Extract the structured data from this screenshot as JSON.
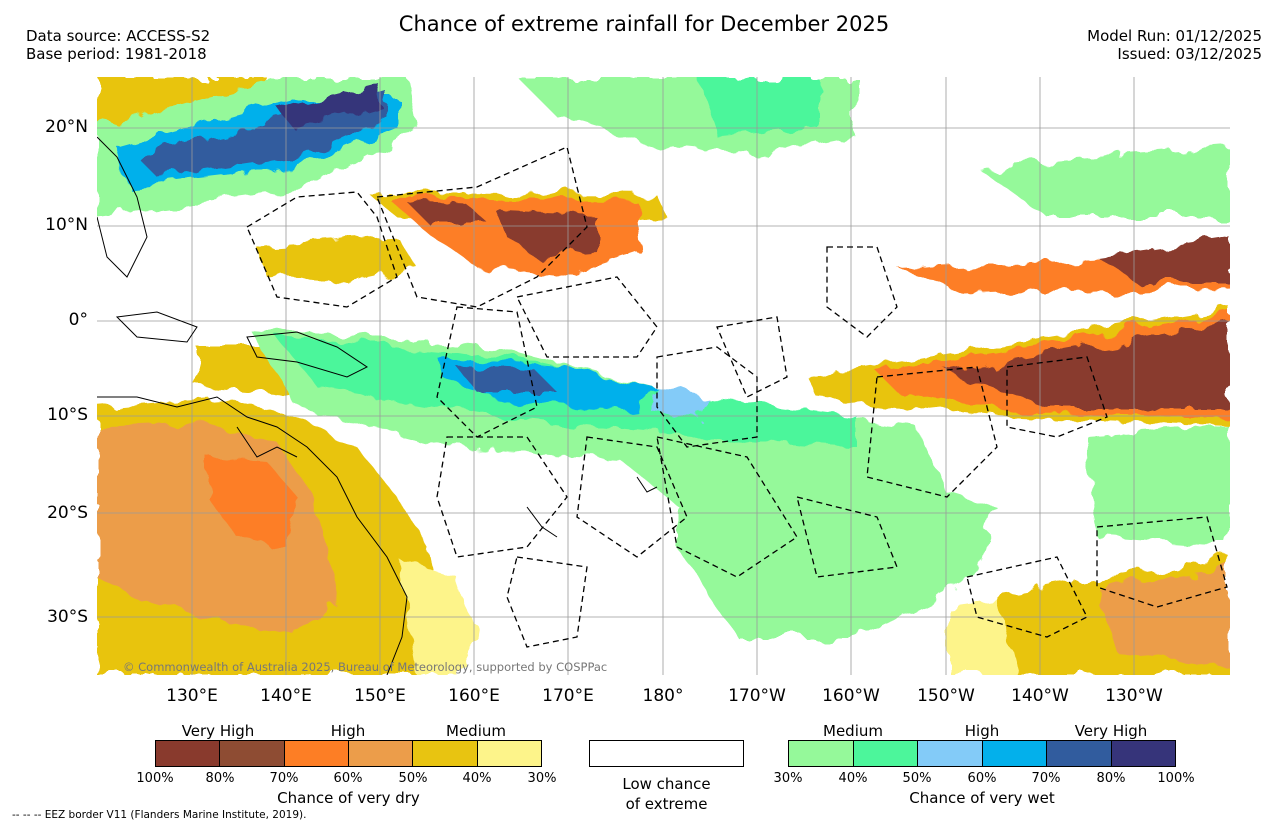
{
  "title": "Chance of extreme rainfall for December 2025",
  "header_left": {
    "data_source": "Data source: ACCESS-S2",
    "base_period": "Base period: 1981-2018"
  },
  "header_right": {
    "model_run": "Model Run: 01/12/2025",
    "issued": "Issued: 03/12/2025"
  },
  "copyright": "© Commonwealth of Australia 2025, Bureau of Meteorology, supported by COSPPac",
  "lat_labels": [
    "20°N",
    "10°N",
    "0°",
    "10°S",
    "20°S",
    "30°S"
  ],
  "lon_labels": [
    "130°E",
    "140°E",
    "150°E",
    "160°E",
    "170°E",
    "180°",
    "170°W",
    "160°W",
    "150°W",
    "140°W",
    "130°W"
  ],
  "legend_dry": {
    "categories": [
      "Very High",
      "High",
      "Medium"
    ],
    "ticks": [
      "100%",
      "80%",
      "70%",
      "60%",
      "50%",
      "40%",
      "30%"
    ],
    "label": "Chance of very dry",
    "colors": [
      "#893a2d",
      "#8e4c33",
      "#fd7e25",
      "#ec9d4a",
      "#e8c411",
      "#fdf48a"
    ]
  },
  "legend_low": {
    "line1": "Low chance",
    "line2": "of extreme"
  },
  "legend_wet": {
    "categories": [
      "Medium",
      "High",
      "Very High"
    ],
    "ticks": [
      "30%",
      "40%",
      "50%",
      "60%",
      "70%",
      "80%",
      "100%"
    ],
    "label": "Chance of very wet",
    "colors": [
      "#95f99a",
      "#4cf69b",
      "#83cbf8",
      "#03b0eb",
      "#315c9e",
      "#36347a"
    ]
  },
  "eez_note": "--  --  -- EEZ border V11 (Flanders Marine Institute, 2019)."
}
